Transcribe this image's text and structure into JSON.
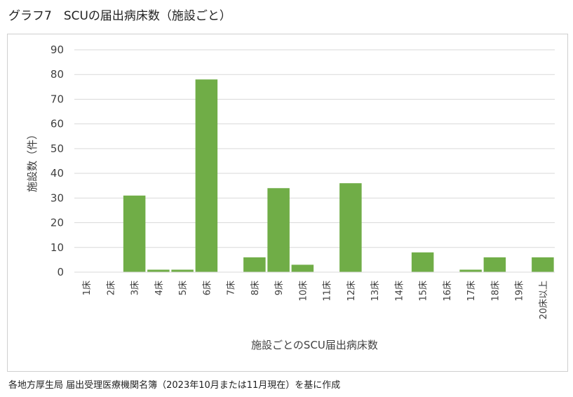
{
  "title": "グラフ7　SCUの届出病床数（施設ごと）",
  "source": "各地方厚生局 届出受理医療機関名簿（2023年10月または11月現在）を基に作成",
  "colors": {
    "bar": "#70ad47",
    "grid": "#d9d9d9",
    "text": "#404040"
  },
  "chart_data": {
    "type": "bar",
    "categories": [
      "1床",
      "2床",
      "3床",
      "4床",
      "5床",
      "6床",
      "7床",
      "8床",
      "9床",
      "10床",
      "11床",
      "12床",
      "13床",
      "14床",
      "15床",
      "16床",
      "17床",
      "18床",
      "19床",
      "20床以上"
    ],
    "values": [
      0,
      0,
      31,
      1,
      1,
      78,
      0,
      6,
      34,
      3,
      0,
      36,
      0,
      0,
      8,
      0,
      1,
      6,
      0,
      6
    ],
    "xlabel": "施設ごとのSCU届出病床数",
    "ylabel": "施設数（件）",
    "ylim": [
      0,
      90
    ],
    "yticks": [
      0,
      10,
      20,
      30,
      40,
      50,
      60,
      70,
      80,
      90
    ],
    "grid": true,
    "legend": "none"
  }
}
